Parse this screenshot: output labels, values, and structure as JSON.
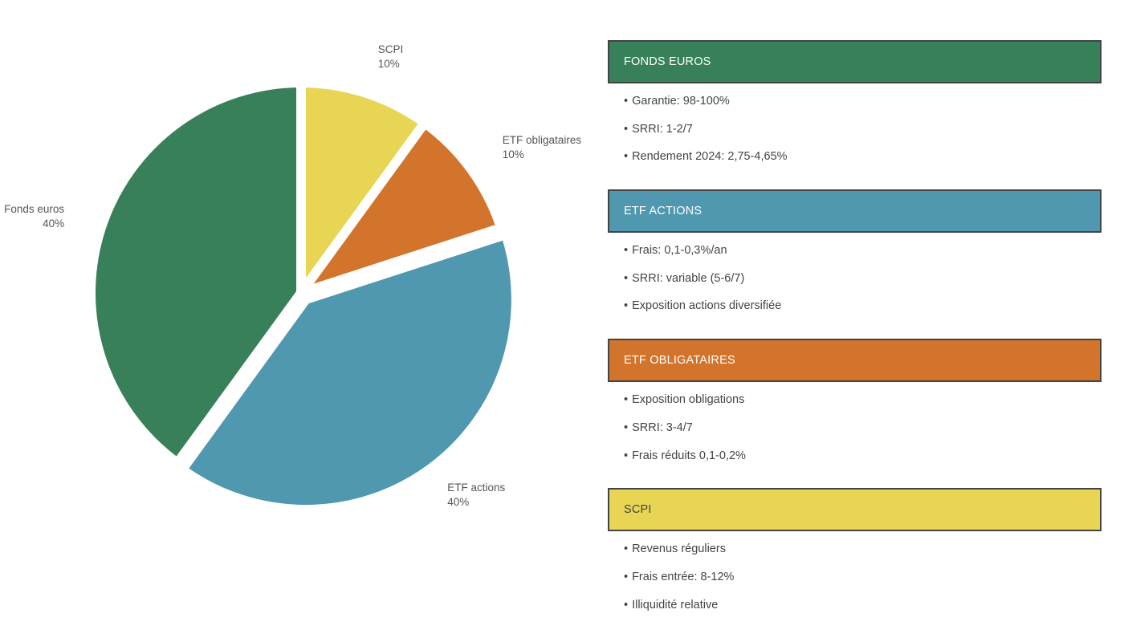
{
  "chart_data": {
    "type": "pie",
    "start_angle_deg": 0,
    "direction": "clockwise",
    "slices": [
      {
        "key": "scpi",
        "label": "SCPI",
        "pct_label": "10%",
        "value": 10,
        "color": "#E8D554",
        "explode": false
      },
      {
        "key": "etf_oblig",
        "label": "ETF obligataires",
        "pct_label": "10%",
        "value": 10,
        "color": "#D2742B",
        "explode": false
      },
      {
        "key": "etf_actions",
        "label": "ETF actions",
        "pct_label": "40%",
        "value": 40,
        "color": "#5097B0",
        "explode": true
      },
      {
        "key": "fonds_euros",
        "label": "Fonds euros",
        "pct_label": "40%",
        "value": 40,
        "color": "#388059",
        "explode": false
      }
    ]
  },
  "cards": [
    {
      "key": "fonds-euros",
      "title": "FONDS EUROS",
      "bg": "#388059",
      "fg": "#ffffff",
      "items": [
        "Garantie: 98-100%",
        "SRRI: 1-2/7",
        "Rendement 2024: 2,75-4,65%"
      ]
    },
    {
      "key": "etf-actions",
      "title": "ETF ACTIONS",
      "bg": "#5097B0",
      "fg": "#ffffff",
      "items": [
        "Frais: 0,1-0,3%/an",
        "SRRI: variable (5-6/7)",
        "Exposition actions diversifiée"
      ]
    },
    {
      "key": "etf-obligataires",
      "title": "ETF OBLIGATAIRES",
      "bg": "#D2742B",
      "fg": "#ffffff",
      "items": [
        "Exposition obligations",
        "SRRI: 3-4/7",
        "Frais réduits 0,1-0,2%"
      ]
    },
    {
      "key": "scpi",
      "title": "SCPI",
      "bg": "#E8D554",
      "fg": "#444444",
      "items": [
        "Revenus réguliers",
        "Frais entrée: 8-12%",
        "Illiquidité relative"
      ]
    }
  ]
}
